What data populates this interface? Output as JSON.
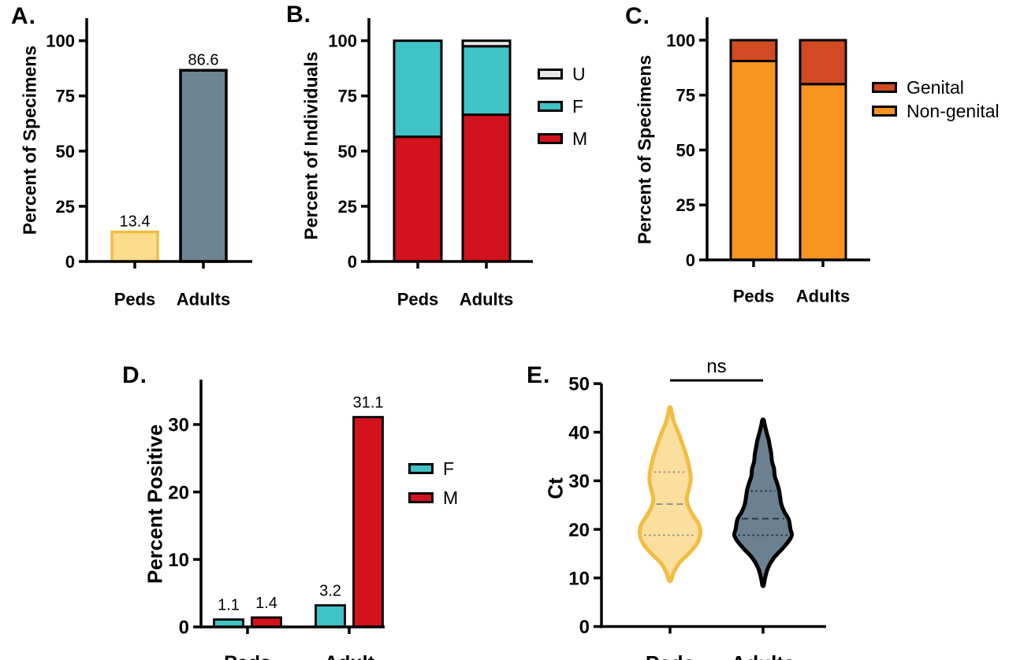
{
  "figure": {
    "background": "#ffffff"
  },
  "chart_data": [
    {
      "id": "A",
      "panel_label": "A.",
      "type": "bar",
      "title": "",
      "ylabel": "Percent of Specimens",
      "categories": [
        "Peds",
        "Adults"
      ],
      "values": [
        13.4,
        86.6
      ],
      "value_labels": [
        "13.4",
        "86.6"
      ],
      "ylim": [
        0,
        110
      ],
      "yticks": [
        0,
        25,
        50,
        75,
        100
      ],
      "grid": false,
      "bar_fills": [
        "#fbdd8d",
        "#6d8494"
      ],
      "bar_strokes": [
        "#f2bd43",
        "#000000"
      ]
    },
    {
      "id": "B",
      "panel_label": "B.",
      "type": "bar",
      "subtype": "stacked",
      "title": "",
      "ylabel": "Percent of Individuals",
      "categories": [
        "Peds",
        "Adults"
      ],
      "series": [
        {
          "name": "M",
          "color": "#d2121c",
          "values": [
            56.5,
            66.5
          ]
        },
        {
          "name": "F",
          "color": "#3fc3c6",
          "values": [
            43.5,
            31.0
          ]
        },
        {
          "name": "U",
          "color": "#e8e8e8",
          "values": [
            0,
            2.5
          ]
        }
      ],
      "legend_order": [
        "U",
        "F",
        "M"
      ],
      "legend_position": "right",
      "ylim": [
        0,
        110
      ],
      "yticks": [
        0,
        25,
        50,
        75,
        100
      ],
      "grid": false
    },
    {
      "id": "C",
      "panel_label": "C.",
      "type": "bar",
      "subtype": "stacked",
      "title": "",
      "ylabel": "Percent of Specimens",
      "categories": [
        "Peds",
        "Adults"
      ],
      "series": [
        {
          "name": "Non-genital",
          "color": "#f79420",
          "values": [
            90.5,
            80.0
          ]
        },
        {
          "name": "Genital",
          "color": "#d14a24",
          "values": [
            9.5,
            20.0
          ]
        }
      ],
      "legend_order": [
        "Genital",
        "Non-genital"
      ],
      "legend_position": "right",
      "ylim": [
        0,
        110
      ],
      "yticks": [
        0,
        25,
        50,
        75,
        100
      ],
      "grid": false
    },
    {
      "id": "D",
      "panel_label": "D.",
      "type": "bar",
      "subtype": "grouped",
      "title": "",
      "ylabel": "Percent Positive",
      "categories": [
        "Peds",
        "Adult"
      ],
      "series": [
        {
          "name": "F",
          "color": "#3fc3c6",
          "values": [
            1.1,
            3.2
          ]
        },
        {
          "name": "M",
          "color": "#d2121c",
          "values": [
            1.4,
            31.1
          ]
        }
      ],
      "value_labels": [
        [
          "1.1",
          "3.2"
        ],
        [
          "1.4",
          "31.1"
        ]
      ],
      "legend_order": [
        "F",
        "M"
      ],
      "legend_position": "right",
      "ylim": [
        0,
        36.5
      ],
      "yticks": [
        0,
        10,
        20,
        30
      ],
      "grid": false
    },
    {
      "id": "E",
      "panel_label": "E.",
      "type": "violin",
      "title": "",
      "ylabel": "Ct",
      "categories": [
        "Peds",
        "Adults"
      ],
      "ylim": [
        0,
        50
      ],
      "yticks": [
        0,
        10,
        20,
        30,
        40,
        50
      ],
      "grid": false,
      "annotation": {
        "text": "ns",
        "kind": "comparison-line"
      },
      "violins": [
        {
          "name": "Peds",
          "fill": "#fbdf9e",
          "stroke": "#f2bd43",
          "line_color": "#8f8f8f",
          "min": 9.5,
          "max": 45,
          "q1": 18.8,
          "median": 25.2,
          "q3": 31.8,
          "profile": [
            [
              9.5,
              0.015
            ],
            [
              11,
              0.05
            ],
            [
              13,
              0.13
            ],
            [
              15,
              0.27
            ],
            [
              17,
              0.39
            ],
            [
              19,
              0.44
            ],
            [
              21,
              0.42
            ],
            [
              23,
              0.33
            ],
            [
              25,
              0.26
            ],
            [
              26.5,
              0.245
            ],
            [
              28,
              0.27
            ],
            [
              30,
              0.3
            ],
            [
              31.5,
              0.295
            ],
            [
              34,
              0.26
            ],
            [
              36,
              0.22
            ],
            [
              38,
              0.17
            ],
            [
              40,
              0.12
            ],
            [
              42,
              0.06
            ],
            [
              44,
              0.025
            ],
            [
              45,
              0.01
            ]
          ]
        },
        {
          "name": "Adults",
          "fill": "#6b8191",
          "stroke": "#000000",
          "line_color": "#223240",
          "min": 8.5,
          "max": 42.5,
          "q1": 18.8,
          "median": 22.2,
          "q3": 27.9,
          "profile": [
            [
              8.5,
              0.01
            ],
            [
              10,
              0.03
            ],
            [
              12,
              0.07
            ],
            [
              14,
              0.15
            ],
            [
              16,
              0.28
            ],
            [
              17.5,
              0.37
            ],
            [
              18.8,
              0.42
            ],
            [
              20,
              0.4
            ],
            [
              22,
              0.375
            ],
            [
              23.5,
              0.315
            ],
            [
              25,
              0.27
            ],
            [
              26.5,
              0.25
            ],
            [
              28,
              0.235
            ],
            [
              29.5,
              0.205
            ],
            [
              31,
              0.17
            ],
            [
              32.5,
              0.16
            ],
            [
              34,
              0.13
            ],
            [
              35.5,
              0.12
            ],
            [
              37,
              0.1
            ],
            [
              38.5,
              0.08
            ],
            [
              40,
              0.05
            ],
            [
              41.5,
              0.025
            ],
            [
              42.5,
              0.01
            ]
          ]
        }
      ]
    }
  ]
}
